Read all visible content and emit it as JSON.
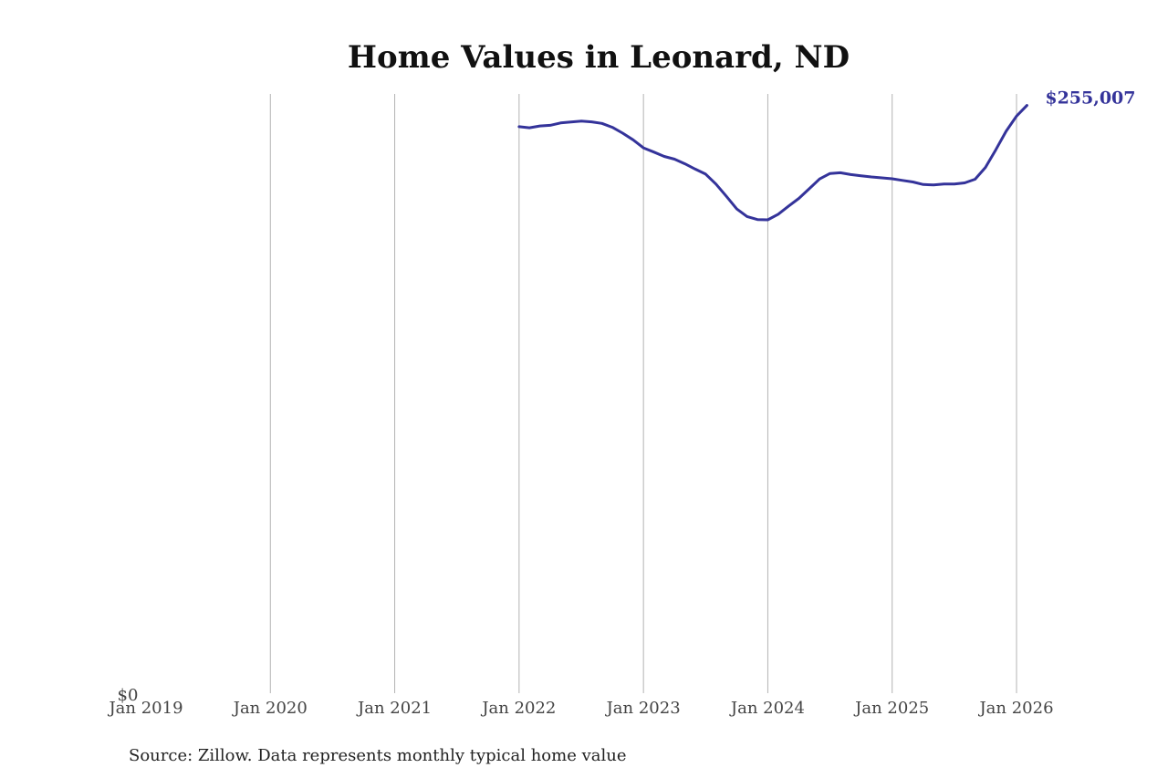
{
  "chart_data": {
    "type": "line",
    "title": "Home Values in Leonard, ND",
    "xlabel": "",
    "ylabel": "",
    "y_tick_labels": [
      "$0"
    ],
    "x_tick_labels": [
      "Jan 2019",
      "Jan 2020",
      "Jan 2021",
      "Jan 2022",
      "Jan 2023",
      "Jan 2024",
      "Jan 2025",
      "Jan 2026"
    ],
    "x_range": [
      "2019-01",
      "2026-02"
    ],
    "ylim": [
      0,
      260000
    ],
    "grid": "vertical",
    "line_color": "#34339a",
    "end_label": "$255,007",
    "source_note": "Source: Zillow. Data represents monthly typical home value",
    "series": [
      {
        "x": [
          "2022-01",
          "2022-02",
          "2022-03",
          "2022-04",
          "2022-05",
          "2022-06",
          "2022-07",
          "2022-08",
          "2022-09",
          "2022-10",
          "2022-11",
          "2022-12",
          "2023-01",
          "2023-02",
          "2023-03",
          "2023-04",
          "2023-05",
          "2023-06",
          "2023-07",
          "2023-08",
          "2023-09",
          "2023-10",
          "2023-11",
          "2023-12",
          "2024-01",
          "2024-02",
          "2024-03",
          "2024-04",
          "2024-05",
          "2024-06",
          "2024-07",
          "2024-08",
          "2024-09",
          "2024-10",
          "2024-11",
          "2024-12",
          "2025-01",
          "2025-02",
          "2025-03",
          "2025-04",
          "2025-05",
          "2025-06",
          "2025-07",
          "2025-08",
          "2025-09",
          "2025-10",
          "2025-11",
          "2025-12",
          "2026-01",
          "2026-02"
        ],
        "y": [
          245800,
          245300,
          246100,
          246400,
          247400,
          247800,
          248200,
          247900,
          247200,
          245500,
          243000,
          240100,
          236600,
          234800,
          232900,
          231700,
          229700,
          227400,
          225200,
          220900,
          215600,
          210100,
          206800,
          205500,
          205400,
          207800,
          211300,
          214700,
          218900,
          223100,
          225500,
          225800,
          225000,
          224500,
          224000,
          223600,
          223200,
          222500,
          221800,
          220700,
          220500,
          220900,
          220900,
          221400,
          223000,
          228100,
          235800,
          243800,
          250400,
          255007
        ]
      }
    ]
  }
}
